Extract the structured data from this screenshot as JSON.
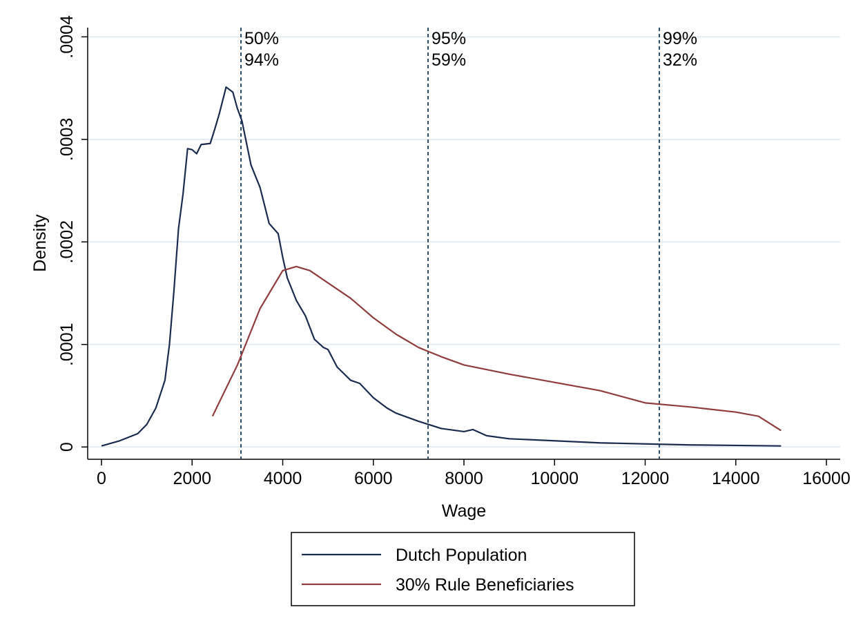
{
  "chart_data": {
    "type": "line",
    "xlabel": "Wage",
    "ylabel": "Density",
    "xlim": [
      -305,
      16305
    ],
    "ylim": [
      -1.2e-05,
      0.000409
    ],
    "xticks": [
      0,
      2000,
      4000,
      6000,
      8000,
      10000,
      12000,
      14000,
      16000
    ],
    "yticks": [
      0,
      {
        "value": 0.0001,
        "label": ".0001"
      },
      {
        "value": 0.0002,
        "label": ".0002"
      },
      {
        "value": 0.0003,
        "label": ".0003"
      },
      {
        "value": 0.0004,
        "label": ".0004"
      }
    ],
    "grid": true,
    "legend": "bottom",
    "series": [
      {
        "name": "Dutch Population",
        "color": "#1a2b4f",
        "x": [
          0,
          400,
          800,
          1000,
          1200,
          1400,
          1500,
          1600,
          1700,
          1800,
          1900,
          2000,
          2100,
          2200,
          2400,
          2500,
          2600,
          2750,
          2900,
          3000,
          3100,
          3300,
          3500,
          3700,
          3900,
          4000,
          4100,
          4300,
          4500,
          4700,
          4900,
          5000,
          5200,
          5500,
          5700,
          6000,
          6300,
          6500,
          7000,
          7500,
          8000,
          8200,
          8500,
          9000,
          10000,
          11000,
          12000,
          13000,
          14000,
          15000
        ],
        "values": [
          1e-06,
          6e-06,
          1.3e-05,
          2.2e-05,
          3.8e-05,
          6.5e-05,
          0.0001,
          0.000153,
          0.000213,
          0.000247,
          0.000291,
          0.00029,
          0.000286,
          0.000295,
          0.000296,
          0.00031,
          0.000325,
          0.000351,
          0.000346,
          0.00033,
          0.000318,
          0.000275,
          0.000253,
          0.000218,
          0.000208,
          0.000185,
          0.000165,
          0.000143,
          0.000128,
          0.000105,
          9.7e-05,
          9.5e-05,
          7.8e-05,
          6.5e-05,
          6.2e-05,
          4.8e-05,
          3.8e-05,
          3.3e-05,
          2.5e-05,
          1.8e-05,
          1.5e-05,
          1.7e-05,
          1.1e-05,
          8e-06,
          6e-06,
          4e-06,
          3e-06,
          2e-06,
          1.5e-06,
          1e-06
        ]
      },
      {
        "name": "30% Rule Beneficiaries",
        "color": "#903c3c",
        "x": [
          2450,
          3000,
          3500,
          4000,
          4300,
          4600,
          5000,
          5500,
          6000,
          6500,
          7000,
          7500,
          8000,
          9000,
          10000,
          11000,
          12000,
          13000,
          14000,
          14500,
          15000
        ],
        "values": [
          3e-05,
          8e-05,
          0.000135,
          0.000172,
          0.000176,
          0.000172,
          0.00016,
          0.000145,
          0.000126,
          0.00011,
          9.7e-05,
          8.8e-05,
          8e-05,
          7.1e-05,
          6.3e-05,
          5.5e-05,
          4.3e-05,
          3.9e-05,
          3.4e-05,
          3e-05,
          1.6e-05
        ]
      }
    ],
    "reference_lines": [
      {
        "x": 3078,
        "labels": [
          "50%",
          "94%"
        ]
      },
      {
        "x": 7208,
        "labels": [
          "95%",
          "59%"
        ]
      },
      {
        "x": 12312,
        "labels": [
          "99%",
          "32%"
        ]
      }
    ]
  }
}
